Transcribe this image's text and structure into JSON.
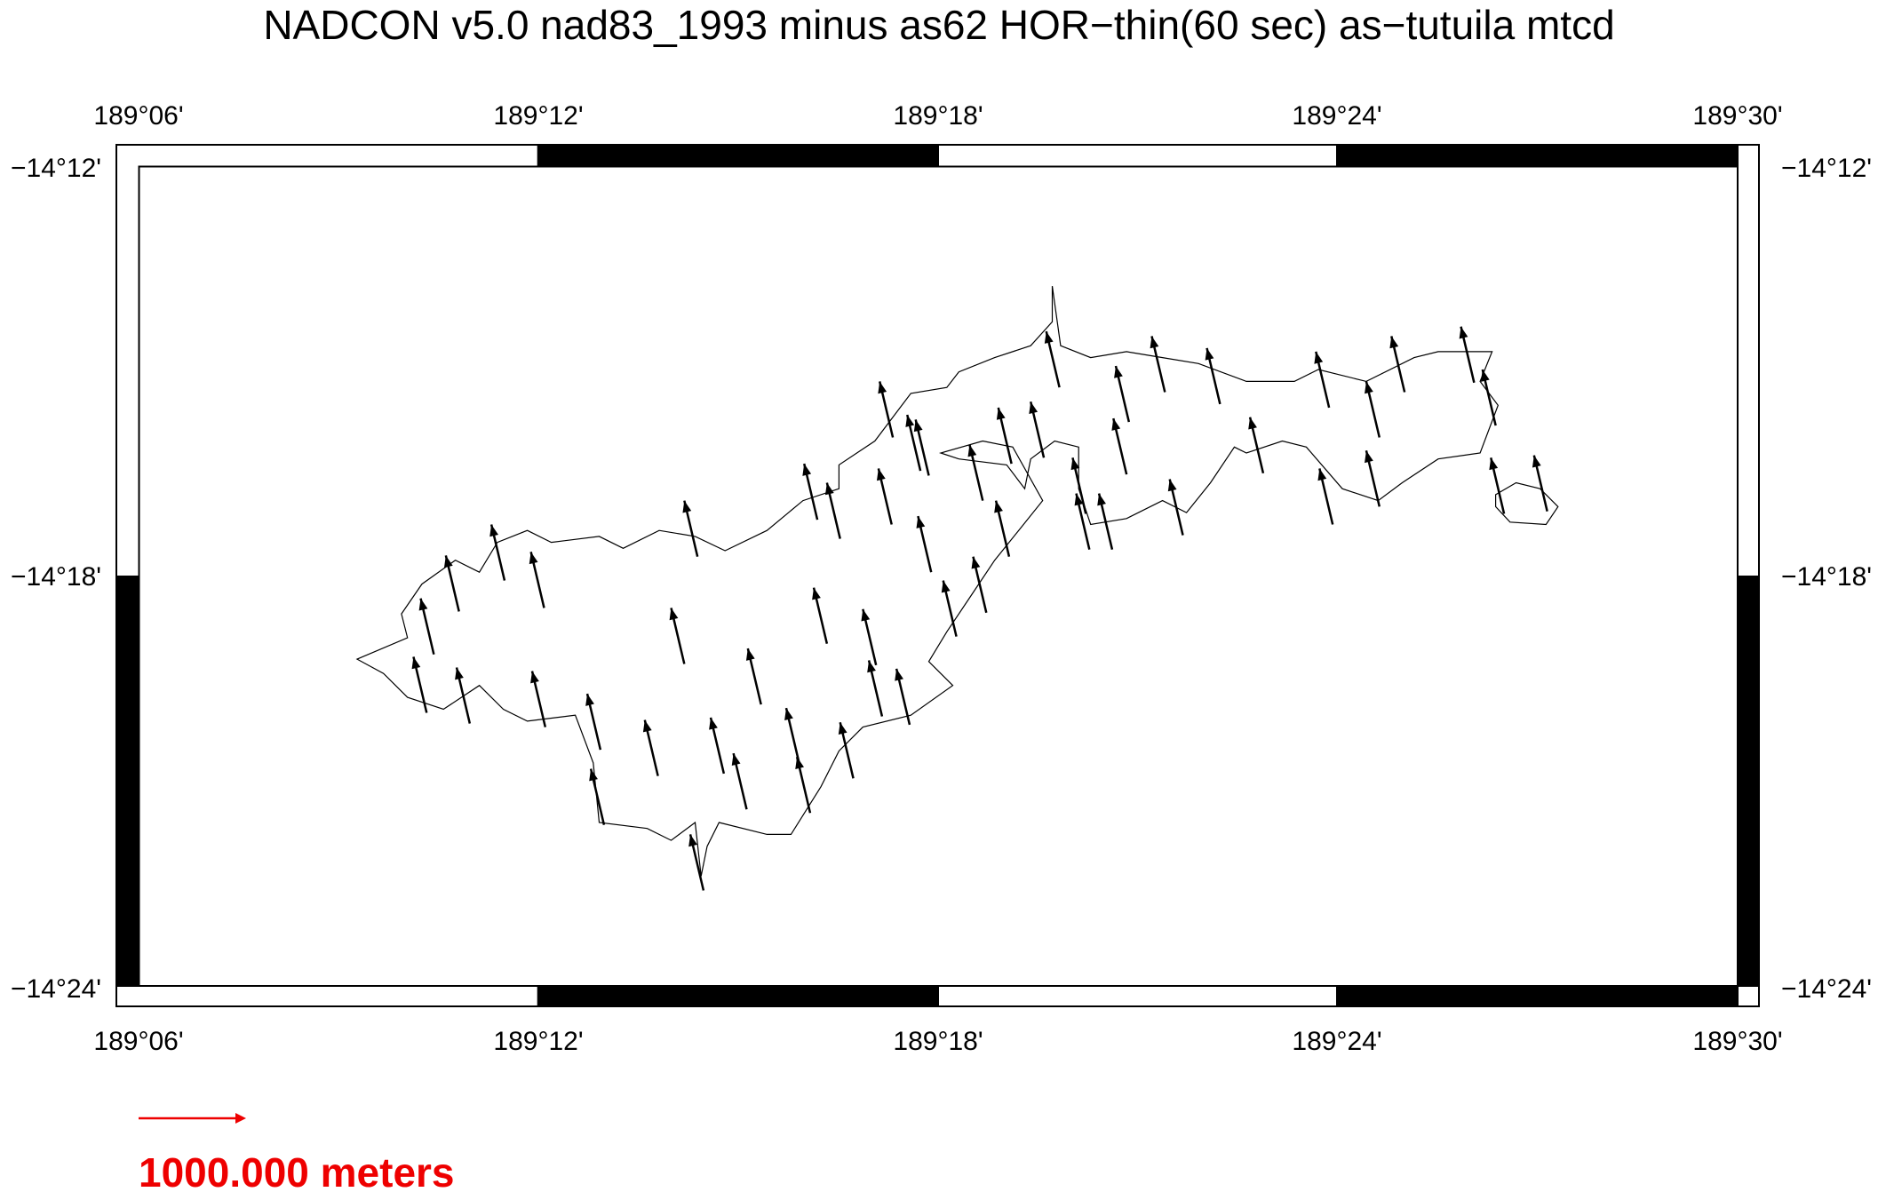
{
  "title": "NADCON v5.0 nad83_1993 minus as62 HOR−thin(60 sec) as−tutuila mtcd",
  "x_axis": {
    "labels": [
      "189°06'",
      "189°12'",
      "189°18'",
      "189°24'",
      "189°30'"
    ]
  },
  "y_axis": {
    "labels": [
      "−14°12'",
      "−14°18'",
      "−14°24'"
    ]
  },
  "scale_bar": {
    "label": "1000.000 meters"
  }
}
